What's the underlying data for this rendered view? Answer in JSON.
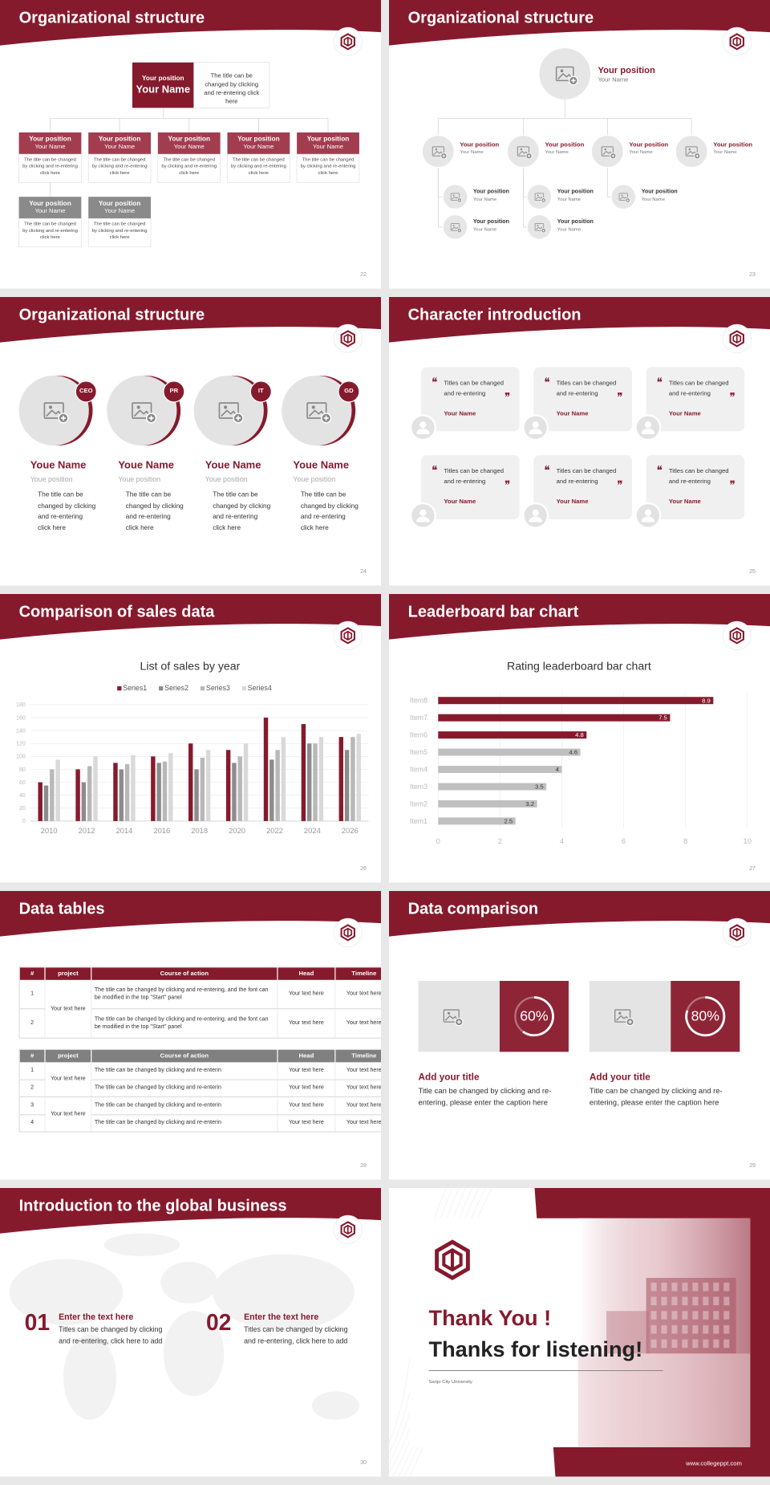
{
  "slides": [
    {
      "title": "Organizational structure",
      "top": {
        "position": "Your position",
        "name": "Your Name",
        "text": "The title can be changed by clicking and re-entering click here"
      },
      "cards": [
        {
          "position": "Your position",
          "name": "Your Name",
          "text": "The title can be changed by clicking and re-entering click here"
        },
        {
          "position": "Your position",
          "name": "Your Name",
          "text": "The title can be changed by clicking and re-entering click here"
        },
        {
          "position": "Your position",
          "name": "Your Name",
          "text": "The title can be changed by clicking and re-entering click here"
        },
        {
          "position": "Your position",
          "name": "Your Name",
          "text": "The title can be changed by clicking and re-entering click here"
        },
        {
          "position": "Your position",
          "name": "Your Name",
          "text": "The title can be changed by clicking and re-entering click here"
        },
        {
          "position": "Your position",
          "name": "Your Name",
          "text": "The title can be changed by clicking and re-entering click here"
        },
        {
          "position": "Your position",
          "name": "Your Name",
          "text": "The title can be changed by clicking and re-entering click here"
        }
      ],
      "page": "22"
    },
    {
      "title": "Organizational structure",
      "head": {
        "position": "Your position",
        "name": "Your Name"
      },
      "nodes": [
        {
          "position": "Your position",
          "name": "Your Name"
        },
        {
          "position": "Your position",
          "name": "Your Name"
        },
        {
          "position": "Your position",
          "name": "Your Name"
        },
        {
          "position": "Your position",
          "name": "Your Name"
        }
      ],
      "subnodes": [
        {
          "position": "Your position",
          "name": "Your Name"
        },
        {
          "position": "Your position",
          "name": "Your Name"
        },
        {
          "position": "Your position",
          "name": "Your Name"
        },
        {
          "position": "Your position",
          "name": "Your Name"
        },
        {
          "position": "Your position",
          "name": "Your Name"
        }
      ],
      "page": "23"
    },
    {
      "title": "Organizational structure",
      "people": [
        {
          "badge": "CEO",
          "name": "Youe Name",
          "position": "Youe position",
          "text": "The title can be changed by clicking and re-entering click here"
        },
        {
          "badge": "PR",
          "name": "Youe Name",
          "position": "Youe position",
          "text": "The title can be changed by clicking and re-entering click here"
        },
        {
          "badge": "IT",
          "name": "Youe Name",
          "position": "Youe position",
          "text": "The title can be changed by clicking and re-entering click here"
        },
        {
          "badge": "GD",
          "name": "Youe Name",
          "position": "Youe position",
          "text": "The title can be changed by clicking and re-entering click here"
        }
      ],
      "page": "24"
    },
    {
      "title": "Character introduction",
      "quotes": [
        {
          "text": "Titles can be changed and re-entering",
          "name": "Your Name"
        },
        {
          "text": "Titles can be changed and re-entering",
          "name": "Your Name"
        },
        {
          "text": "Titles can be changed and re-entering",
          "name": "Your Name"
        },
        {
          "text": "Titles can be changed and re-entering",
          "name": "Your Name"
        },
        {
          "text": "Titles can be changed and re-entering",
          "name": "Your Name"
        },
        {
          "text": "Titles can be changed and re-entering",
          "name": "Your Name"
        }
      ],
      "page": "25"
    },
    {
      "title": "Comparison of sales data",
      "chart": {
        "type": "bar",
        "title": "List of sales by year",
        "categories": [
          "2010",
          "2012",
          "2014",
          "2016",
          "2018",
          "2020",
          "2022",
          "2024",
          "2026"
        ],
        "series": [
          {
            "name": "Series1",
            "color": "#861a2d",
            "values": [
              60,
              80,
              90,
              100,
              120,
              110,
              160,
              150,
              130
            ]
          },
          {
            "name": "Series2",
            "color": "#8c8c8c",
            "values": [
              55,
              60,
              80,
              90,
              80,
              90,
              95,
              120,
              110
            ]
          },
          {
            "name": "Series3",
            "color": "#b8b8b8",
            "values": [
              80,
              85,
              88,
              92,
              98,
              100,
              110,
              120,
              130
            ]
          },
          {
            "name": "Series4",
            "color": "#d9d9d9",
            "values": [
              95,
              100,
              102,
              105,
              110,
              120,
              130,
              130,
              135
            ]
          }
        ],
        "ylim": [
          0,
          180
        ],
        "yticks": [
          0,
          20,
          40,
          60,
          80,
          100,
          120,
          140,
          160,
          180
        ],
        "grid": true
      },
      "page": "26"
    },
    {
      "title": "Leaderboard bar chart",
      "chart": {
        "type": "barh",
        "title": "Rating leaderboard bar chart",
        "categories": [
          "Item1",
          "Item2",
          "Item3",
          "Item4",
          "Item5",
          "Item6",
          "Item7",
          "Item8"
        ],
        "values": [
          2.5,
          3.2,
          3.5,
          4,
          4.6,
          4.8,
          7.5,
          8.9
        ],
        "colors": [
          "#c0c0c0",
          "#c0c0c0",
          "#c0c0c0",
          "#c0c0c0",
          "#c0c0c0",
          "#861a2d",
          "#861a2d",
          "#861a2d"
        ],
        "xlim": [
          0,
          10
        ],
        "xticks": [
          0,
          2,
          4,
          6,
          8,
          10
        ],
        "grid": true
      },
      "page": "27"
    },
    {
      "title": "Data tables",
      "tables": [
        {
          "header": [
            "#",
            "project",
            "Course of action",
            "Head",
            "Timeline"
          ],
          "groups": [
            {
              "project": "Your text here",
              "rows": [
                [
                  "1",
                  "The title can be changed by clicking and re-entering, and the font can be modified in the top \"Start\" panel",
                  "Your text here",
                  "Your text here"
                ],
                [
                  "2",
                  "The title can be changed by clicking and re-entering, and the font can be modified in the top \"Start\" panel",
                  "Your text here",
                  "Your text here"
                ]
              ]
            }
          ]
        },
        {
          "header": [
            "#",
            "project",
            "Course of action",
            "Head",
            "Timeline"
          ],
          "groups": [
            {
              "project": "Your text here",
              "rows": [
                [
                  "1",
                  "The title can be changed by clicking and re-enterin",
                  "Your text here",
                  "Your text here"
                ],
                [
                  "2",
                  "The title can be changed by clicking and re-enterin",
                  "Your text here",
                  "Your text here"
                ]
              ]
            },
            {
              "project": "Your text here",
              "rows": [
                [
                  "3",
                  "The title can be changed by clicking and re-enterin",
                  "Your text here",
                  "Your text here"
                ],
                [
                  "4",
                  "The title can be changed by clicking and re-enterin",
                  "Your text here",
                  "Your text here"
                ]
              ]
            }
          ]
        }
      ],
      "page": "28"
    },
    {
      "title": "Data comparison",
      "items": [
        {
          "value": 60,
          "label": "60%",
          "title": "Add your title",
          "text": "Title can be changed by clicking and re-entering, please enter the caption here"
        },
        {
          "value": 80,
          "label": "80%",
          "title": "Add your title",
          "text": "Title can be changed by clicking and re-entering, please enter the caption here"
        }
      ],
      "page": "29"
    },
    {
      "title": "Introduction to the global business",
      "points": [
        {
          "number": "01",
          "heading": "Enter the text here",
          "text": "Titles can be changed by clicking and re-entering, click here to add"
        },
        {
          "number": "02",
          "heading": "Enter the text here",
          "text": "Titles can be changed by clicking and re-entering, click here to add"
        }
      ],
      "page": "30"
    },
    {
      "thanks": "Thank You !",
      "subtitle": "Thanks for listening!",
      "university": "Sanjo City University",
      "website": "www.collegeppt.com"
    }
  ]
}
